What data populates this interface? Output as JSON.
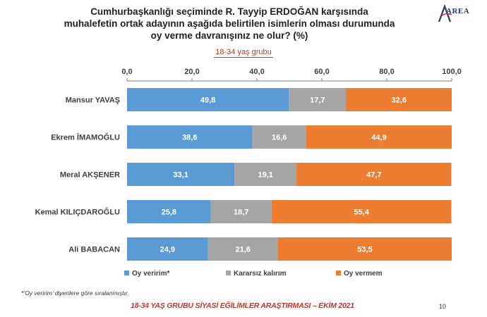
{
  "title_lines": [
    "Cumhurbaşkanlığı seçiminde R. Tayyip ERDOĞAN karşısında",
    "muhalefetin ortak adayının aşağıda belirtilen isimlerin olması durumunda",
    "oy verme davranışınız ne olur? (%)"
  ],
  "subtitle": "18-34 yaş grubu",
  "logo_text": "AREA",
  "footnote": "*’Oy veririm’ diyenlere göre sıralanmıştır.",
  "footer": "18-34 YAŞ GRUBU SİYASİ EĞİLİMLER ARAŞTIRMASI – EKİM 2021",
  "page_number": "10",
  "chart_data": {
    "type": "bar",
    "orientation": "horizontal",
    "stacked": true,
    "categories": [
      "Mansur YAVAŞ",
      "Ekrem İMAMOĞLU",
      "Meral AKŞENER",
      "Kemal KILIÇDAROĞLU",
      "Ali BABACAN"
    ],
    "series": [
      {
        "name": "Oy veririm*",
        "color": "#5b9bd5",
        "values": [
          49.8,
          38.6,
          33.1,
          25.8,
          24.9
        ]
      },
      {
        "name": "Kararsız kalırım",
        "color": "#a5a5a5",
        "values": [
          17.7,
          16.6,
          19.1,
          18.7,
          21.6
        ]
      },
      {
        "name": "Oy vermem",
        "color": "#ed7d31",
        "values": [
          32.6,
          44.9,
          47.7,
          55.4,
          53.5
        ]
      }
    ],
    "xlim": [
      0,
      100
    ],
    "xticks": [
      "0,0",
      "20,0",
      "40,0",
      "60,0",
      "80,0",
      "100,0"
    ],
    "axis_position": "top",
    "legend_position": "bottom",
    "grid": false
  }
}
